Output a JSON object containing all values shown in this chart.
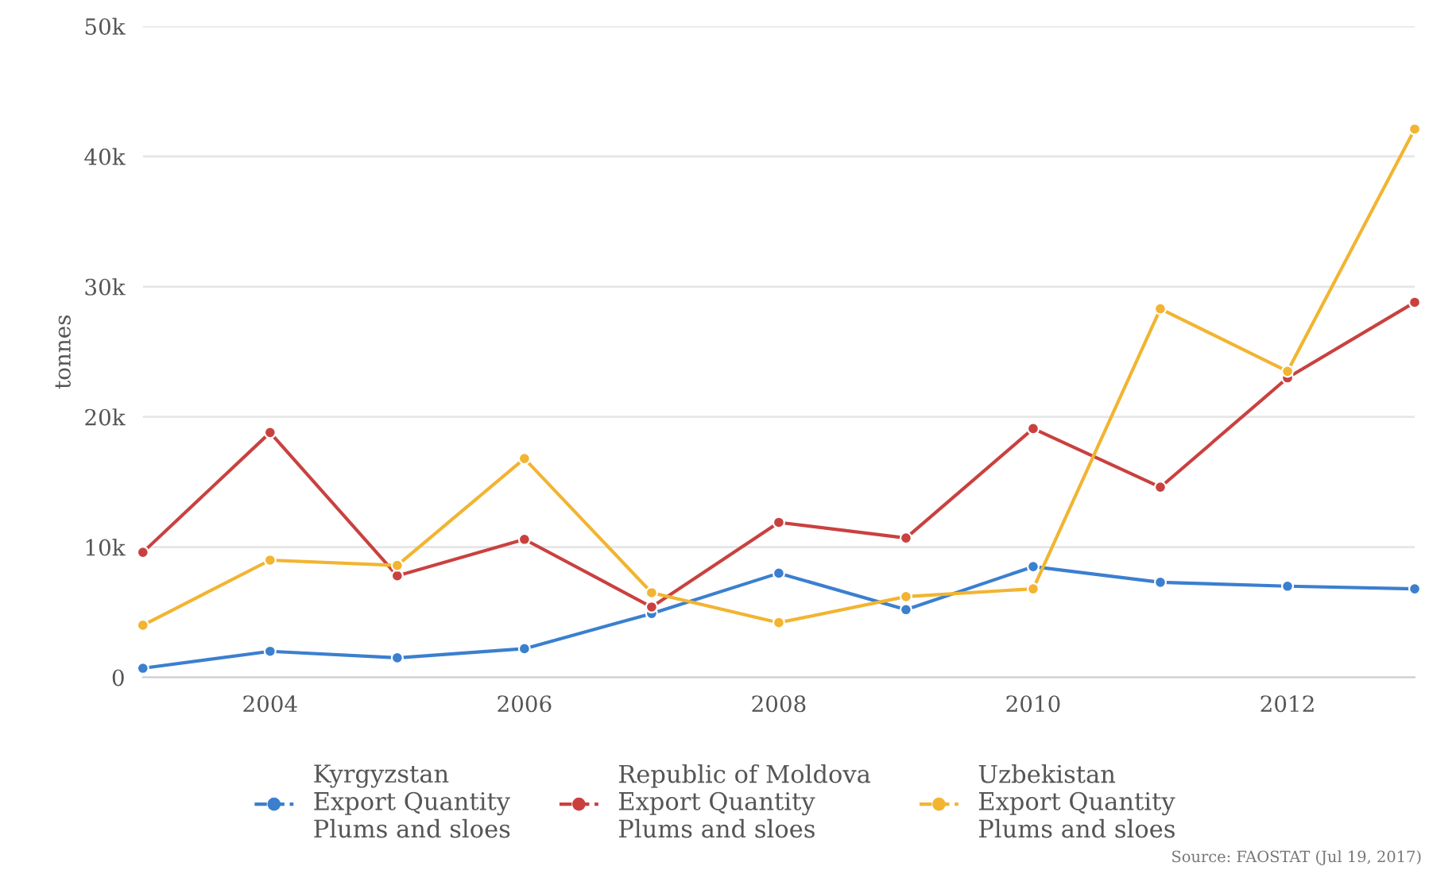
{
  "chart_data": {
    "type": "line",
    "ylabel": "tonnes",
    "x": [
      2003,
      2004,
      2005,
      2006,
      2007,
      2008,
      2009,
      2010,
      2011,
      2012,
      2013
    ],
    "series": [
      {
        "name": "Kyrgyzstan\nExport Quantity\nPlums and sloes",
        "color": "#3b7fcf",
        "values": [
          700,
          2000,
          1500,
          2200,
          4900,
          8000,
          5200,
          8500,
          7300,
          7000,
          6800
        ]
      },
      {
        "name": "Republic of Moldova\nExport Quantity\nPlums and sloes",
        "color": "#c9413f",
        "values": [
          9600,
          18800,
          7800,
          10600,
          5400,
          11900,
          10700,
          19100,
          14600,
          23000,
          28800
        ]
      },
      {
        "name": "Uzbekistan\nExport Quantity\nPlums and sloes",
        "color": "#f2b431",
        "values": [
          4000,
          9000,
          8600,
          16800,
          6500,
          4200,
          6200,
          6800,
          28300,
          23500,
          42100
        ]
      }
    ],
    "xlim": [
      2003,
      2013
    ],
    "xticks": [
      2004,
      2006,
      2008,
      2010,
      2012
    ],
    "ylim": [
      0,
      50000
    ],
    "yticks": [
      {
        "value": 0,
        "label": "0"
      },
      {
        "value": 10000,
        "label": "10k"
      },
      {
        "value": 20000,
        "label": "20k"
      },
      {
        "value": 30000,
        "label": "30k"
      },
      {
        "value": 40000,
        "label": "40k"
      },
      {
        "value": 50000,
        "label": "50k"
      }
    ],
    "grid": "y",
    "legend": "bottom",
    "marker": "circle",
    "line_style": "solid",
    "annotations": [
      "Source: FAOSTAT (Jul 19, 2017)"
    ]
  }
}
